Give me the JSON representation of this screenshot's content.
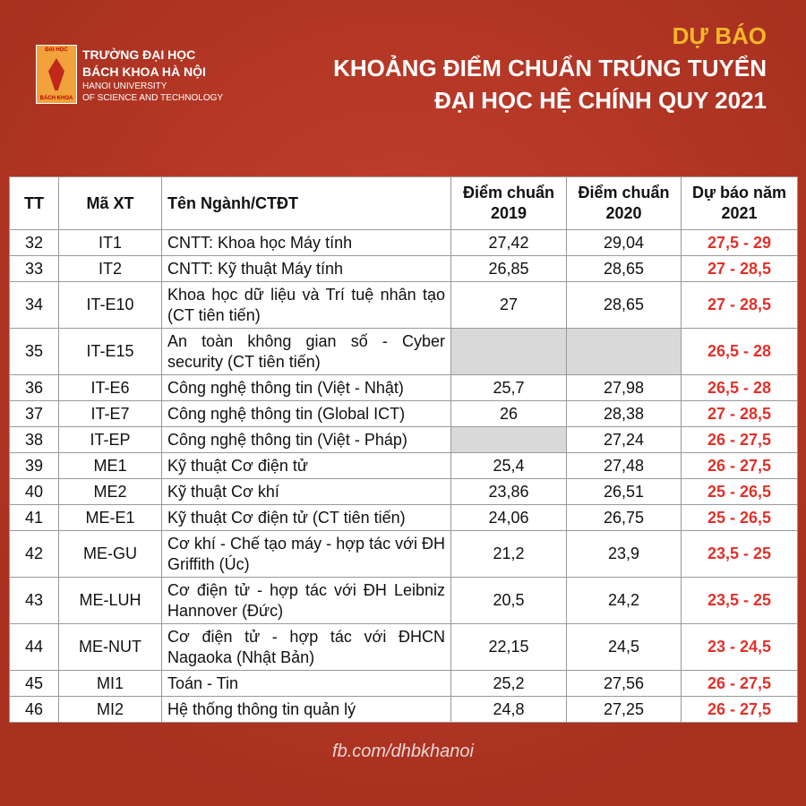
{
  "header": {
    "logo_top": "ĐẠI HỌC",
    "logo_bottom": "BÁCH KHOA",
    "school_lines": [
      "TRƯỜNG ĐẠI HỌC",
      "BÁCH KHOA HÀ NỘI",
      "HANOI UNIVERSITY",
      "OF SCIENCE AND TECHNOLOGY"
    ],
    "title_lines": [
      "DỰ BÁO",
      "KHOẢNG ĐIỂM CHUẨN TRÚNG TUYỂN",
      "ĐẠI HỌC HỆ CHÍNH QUY 2021"
    ]
  },
  "table": {
    "columns": [
      "TT",
      "Mã XT",
      "Tên Ngành/CTĐT",
      "Điểm chuẩn\n2019",
      "Điểm chuẩn\n2020",
      "Dự báo năm\n2021"
    ],
    "rows": [
      [
        "32",
        "IT1",
        "CNTT: Khoa học Máy tính",
        "27,42",
        "29,04",
        "27,5 - 29"
      ],
      [
        "33",
        "IT2",
        "CNTT: Kỹ thuật Máy tính",
        "26,85",
        "28,65",
        "27 - 28,5"
      ],
      [
        "34",
        "IT-E10",
        "Khoa học dữ liệu và Trí tuệ nhân tạo (CT tiên tiến)",
        "27",
        "28,65",
        "27 - 28,5"
      ],
      [
        "35",
        "IT-E15",
        "An toàn không gian số - Cyber security (CT tiên tiến)",
        null,
        null,
        "26,5 - 28"
      ],
      [
        "36",
        "IT-E6",
        "Công nghệ thông tin (Việt - Nhật)",
        "25,7",
        "27,98",
        "26,5 - 28"
      ],
      [
        "37",
        "IT-E7",
        "Công nghệ thông tin (Global ICT)",
        "26",
        "28,38",
        "27 - 28,5"
      ],
      [
        "38",
        "IT-EP",
        "Công nghệ thông tin (Việt - Pháp)",
        null,
        "27,24",
        "26 - 27,5"
      ],
      [
        "39",
        "ME1",
        "Kỹ thuật Cơ điện tử",
        "25,4",
        "27,48",
        "26 - 27,5"
      ],
      [
        "40",
        "ME2",
        "Kỹ thuật Cơ khí",
        "23,86",
        "26,51",
        "25 - 26,5"
      ],
      [
        "41",
        "ME-E1",
        "Kỹ thuật Cơ điện tử (CT tiên tiến)",
        "24,06",
        "26,75",
        "25 - 26,5"
      ],
      [
        "42",
        "ME-GU",
        "Cơ khí - Chế tạo máy - hợp tác với ĐH Griffith (Úc)",
        "21,2",
        "23,9",
        "23,5 - 25"
      ],
      [
        "43",
        "ME-LUH",
        "Cơ điện tử - hợp tác với ĐH Leibniz Hannover (Đức)",
        "20,5",
        "24,2",
        "23,5 - 25"
      ],
      [
        "44",
        "ME-NUT",
        "Cơ điện tử - hợp tác với ĐHCN Nagaoka (Nhật Bản)",
        "22,15",
        "24,5",
        "23 - 24,5"
      ],
      [
        "45",
        "MI1",
        "Toán - Tin",
        "25,2",
        "27,56",
        "26 - 27,5"
      ],
      [
        "46",
        "MI2",
        "Hệ thống thông tin quản lý",
        "24,8",
        "27,25",
        "26 - 27,5"
      ]
    ]
  },
  "footer": {
    "link": "fb.com/dhbkhanoi"
  }
}
